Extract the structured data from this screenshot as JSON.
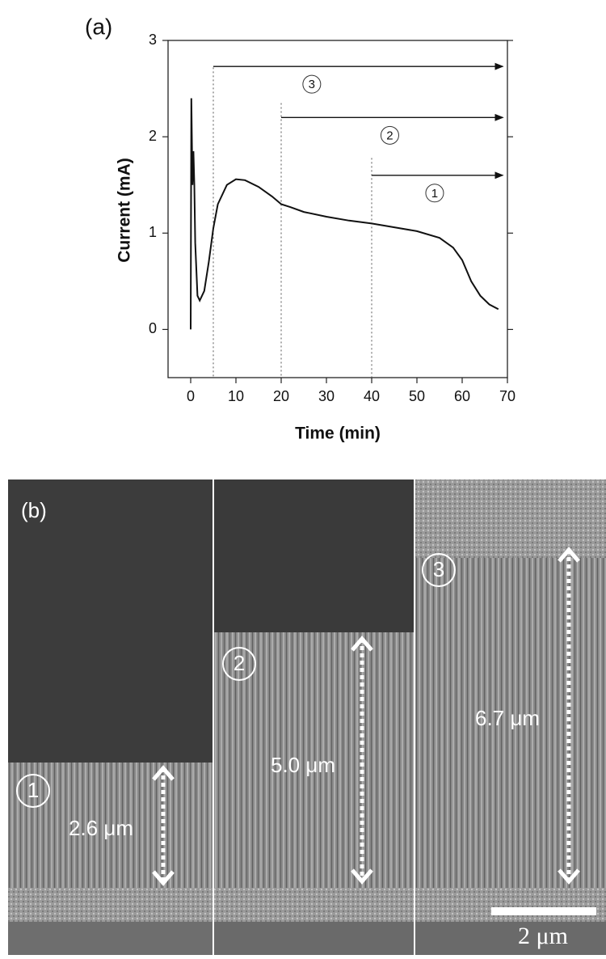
{
  "chart_data": {
    "type": "line",
    "panel_label": "(a)",
    "x_label": "Time (min)",
    "y_label": "Current (mA)",
    "x": [
      0,
      0.15,
      0.4,
      0.6,
      0.8,
      1,
      1.5,
      2,
      3,
      4,
      5,
      6,
      8,
      10,
      12,
      15,
      18,
      20,
      22,
      25,
      30,
      35,
      40,
      45,
      50,
      55,
      58,
      60,
      62,
      64,
      66,
      68
    ],
    "values": [
      0,
      2.4,
      1.5,
      1.85,
      1.5,
      0.9,
      0.35,
      0.3,
      0.4,
      0.7,
      1.05,
      1.3,
      1.5,
      1.56,
      1.55,
      1.48,
      1.38,
      1.3,
      1.27,
      1.22,
      1.17,
      1.13,
      1.1,
      1.06,
      1.02,
      0.95,
      0.85,
      0.72,
      0.5,
      0.35,
      0.26,
      0.21
    ],
    "color": "#111111",
    "xlim": [
      -5,
      70
    ],
    "xticks": [
      0,
      10,
      20,
      30,
      40,
      50,
      60,
      70
    ],
    "ylim": [
      -0.5,
      3
    ],
    "yticks": [
      0,
      1,
      2,
      3
    ],
    "arrow_end_x": 69,
    "annotations": [
      {
        "x": 5,
        "y_top": 2.72,
        "arrow_y": 2.73,
        "label": "3"
      },
      {
        "x": 20,
        "y_top": 2.35,
        "arrow_y": 2.2,
        "label": "2"
      },
      {
        "x": 40,
        "y_top": 1.78,
        "arrow_y": 1.6,
        "label": "1"
      }
    ]
  },
  "sem_panel": {
    "label": "(b)",
    "images": [
      {
        "marker": "1",
        "thickness": "2.6 μm"
      },
      {
        "marker": "2",
        "thickness": "5.0 μm"
      },
      {
        "marker": "3",
        "thickness": "6.7 μm"
      }
    ],
    "scale_bar": "2 μm"
  }
}
